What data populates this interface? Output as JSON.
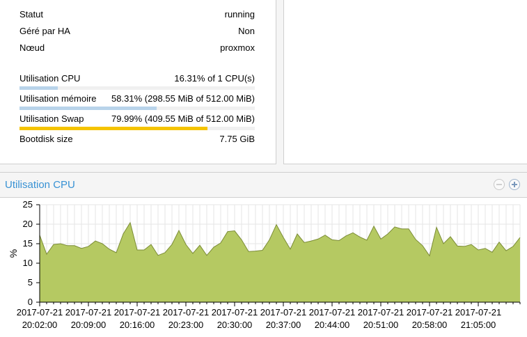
{
  "status": {
    "rows": [
      {
        "label": "Statut",
        "value": "running"
      },
      {
        "label": "Géré par HA",
        "value": "Non"
      },
      {
        "label": "Nœud",
        "value": "proxmox"
      }
    ],
    "cpu": {
      "label": "Utilisation CPU",
      "value": "16.31% of 1 CPU(s)",
      "fraction": 0.1631,
      "color": "#b8d3ea"
    },
    "memory": {
      "label": "Utilisation mémoire",
      "value": "58.31% (298.55 MiB of 512.00 MiB)",
      "fraction": 0.5831,
      "color": "#b8d3ea"
    },
    "swap": {
      "label": "Utilisation Swap",
      "value": "79.99% (409.55 MiB of 512.00 MiB)",
      "fraction": 0.7999,
      "color": "#f5c400"
    },
    "bootdisk": {
      "label": "Bootdisk size",
      "value": "7.75 GiB"
    }
  },
  "chart_panel": {
    "title": "Utilisation CPU"
  },
  "chart_data": {
    "type": "area",
    "ylabel": "%",
    "ylim": [
      0,
      25
    ],
    "yticks": [
      0,
      5,
      10,
      15,
      20,
      25
    ],
    "xtick_labels": [
      [
        "2017-07-21",
        "20:02:00"
      ],
      [
        "2017-07-21",
        "20:09:00"
      ],
      [
        "2017-07-21",
        "20:16:00"
      ],
      [
        "2017-07-21",
        "20:23:00"
      ],
      [
        "2017-07-21",
        "20:30:00"
      ],
      [
        "2017-07-21",
        "20:37:00"
      ],
      [
        "2017-07-21",
        "20:44:00"
      ],
      [
        "2017-07-21",
        "20:51:00"
      ],
      [
        "2017-07-21",
        "20:58:00"
      ],
      [
        "2017-07-21",
        "21:05:00"
      ]
    ],
    "interval_minutes": 1,
    "series": [
      {
        "fill_color": "#b5c962",
        "line_color": "#7b8c36",
        "values": [
          17.2,
          12.3,
          14.8,
          15.0,
          14.5,
          14.5,
          13.8,
          14.3,
          15.7,
          15.0,
          13.6,
          12.7,
          17.5,
          20.4,
          13.4,
          13.4,
          14.8,
          12.0,
          12.7,
          14.8,
          18.4,
          14.8,
          12.5,
          14.6,
          12.0,
          14.1,
          15.2,
          18.1,
          18.3,
          16.0,
          13.0,
          13.1,
          13.3,
          16.0,
          19.9,
          16.6,
          13.6,
          17.5,
          15.3,
          15.7,
          16.2,
          17.2,
          16.0,
          15.8,
          17.0,
          17.8,
          16.7,
          15.9,
          19.5,
          16.2,
          17.5,
          19.3,
          18.8,
          18.8,
          16.1,
          14.5,
          11.9,
          19.2,
          15.0,
          16.8,
          14.4,
          14.3,
          14.8,
          13.4,
          13.8,
          12.8,
          15.4,
          13.2,
          14.3,
          16.6
        ]
      }
    ]
  }
}
